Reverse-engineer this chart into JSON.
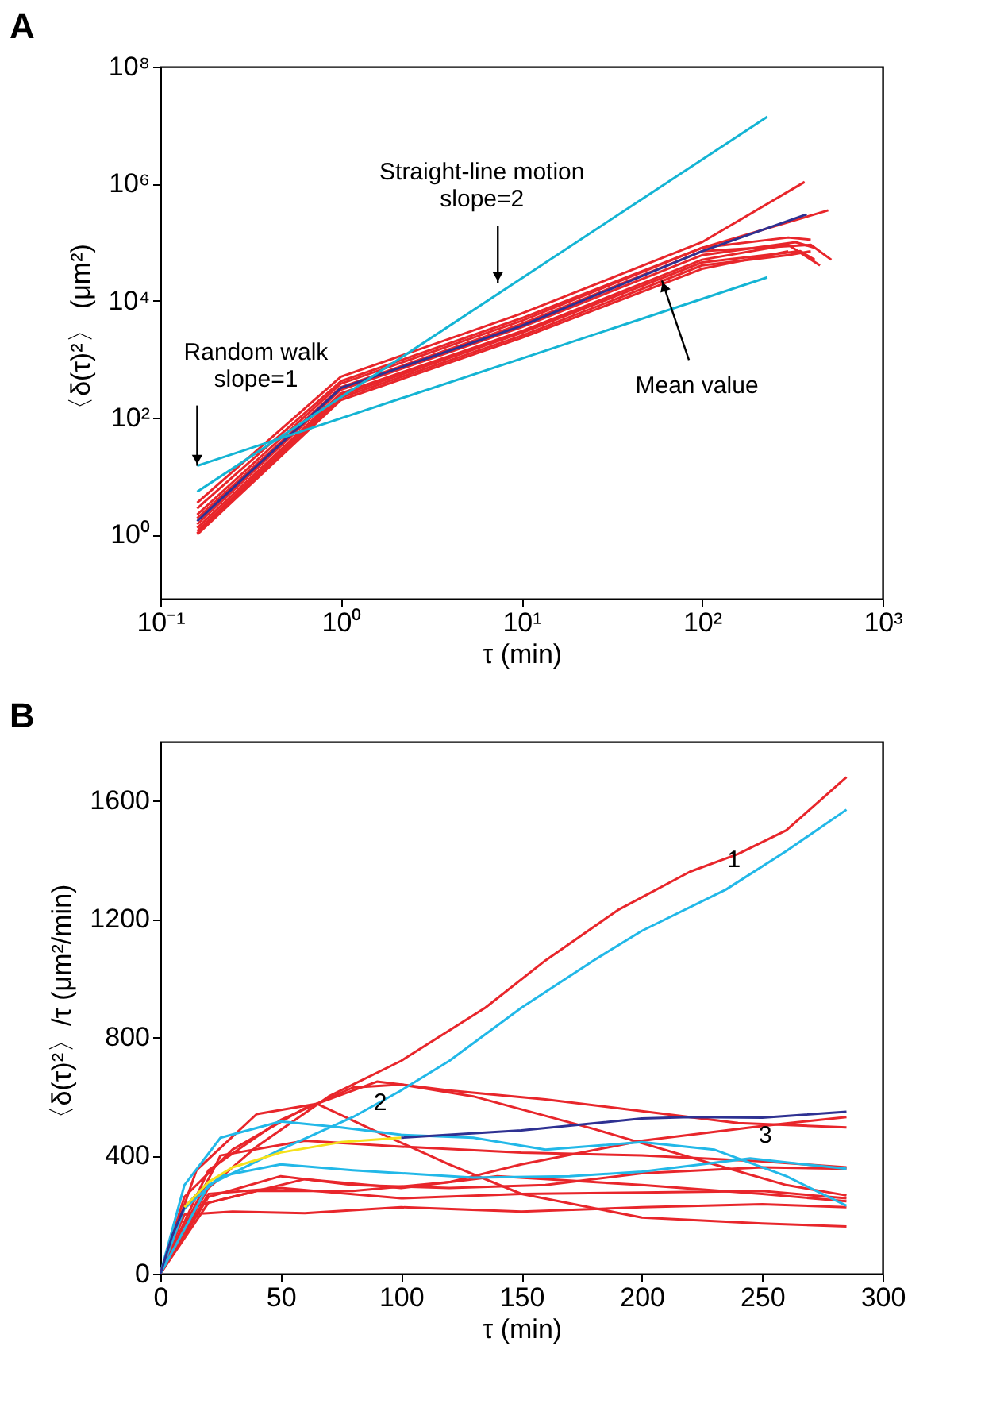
{
  "chart_data": [
    {
      "type": "line",
      "title": "A",
      "xlabel": "τ (min)",
      "ylabel": "〈δ(τ)²〉 (μm²)",
      "log": "xy",
      "grid": false,
      "legend": false,
      "xlim": [
        0.1,
        1000
      ],
      "xticks": [
        {
          "value": 0.1,
          "label": "10⁻¹"
        },
        {
          "value": 1,
          "label": "10⁰"
        },
        {
          "value": 10,
          "label": "10¹"
        },
        {
          "value": 100,
          "label": "10²"
        },
        {
          "value": 1000,
          "label": "10³"
        }
      ],
      "ylim": [
        0.08,
        100000000
      ],
      "yticks": [
        {
          "value": 1,
          "label": "10⁰"
        },
        {
          "value": 100,
          "label": "10²"
        },
        {
          "value": 10000,
          "label": "10⁴"
        },
        {
          "value": 1000000,
          "label": "10⁶"
        },
        {
          "value": 100000000,
          "label": "10⁸"
        }
      ],
      "series": [
        {
          "color": "#e8262b",
          "x": [
            0.16,
            1,
            10,
            100,
            370
          ],
          "values": [
            3.5,
            500,
            6000,
            100000,
            1070000
          ]
        },
        {
          "color": "#e8262b",
          "x": [
            0.16,
            1,
            10,
            100,
            500
          ],
          "values": [
            2.8,
            420,
            5000,
            80000,
            350000
          ]
        },
        {
          "color": "#e8262b",
          "x": [
            0.16,
            1,
            10,
            100,
            300,
            400
          ],
          "values": [
            2.2,
            380,
            4500,
            80000,
            120000,
            110000
          ]
        },
        {
          "color": "#e8262b",
          "x": [
            0.16,
            1,
            10,
            100,
            400,
            520
          ],
          "values": [
            1.9,
            330,
            4000,
            70000,
            90000,
            50000
          ]
        },
        {
          "color": "#e8262b",
          "x": [
            0.16,
            1,
            10,
            100,
            330,
            420
          ],
          "values": [
            1.5,
            300,
            3500,
            60000,
            100000,
            80000
          ]
        },
        {
          "color": "#e8262b",
          "x": [
            0.16,
            1,
            10,
            100,
            300,
            450
          ],
          "values": [
            1.3,
            260,
            3000,
            50000,
            90000,
            40000
          ]
        },
        {
          "color": "#e8262b",
          "x": [
            0.16,
            1,
            10,
            100,
            350,
            420
          ],
          "values": [
            1.15,
            240,
            2800,
            45000,
            70000,
            50000
          ]
        },
        {
          "color": "#e8262b",
          "x": [
            0.16,
            1,
            10,
            100,
            300,
            400
          ],
          "values": [
            1.05,
            220,
            2500,
            40000,
            60000,
            70000
          ]
        },
        {
          "color": "#e8262b",
          "x": [
            0.16,
            1,
            10,
            100,
            300
          ],
          "values": [
            1.0,
            200,
            2300,
            35000,
            70000
          ]
        },
        {
          "color": "#2e3192",
          "x": [
            0.16,
            1,
            10,
            100,
            380
          ],
          "values": [
            1.7,
            320,
            3700,
            70000,
            300000
          ]
        },
        {
          "color": "#14b4d4",
          "x": [
            0.16,
            230
          ],
          "values": [
            15,
            25000
          ]
        },
        {
          "color": "#14b4d4",
          "x": [
            0.16,
            230
          ],
          "values": [
            5.4,
            14000000
          ]
        }
      ],
      "annotations": [
        {
          "text": "Straight-line motion\nslope=2",
          "x": 7.4,
          "y": 20000
        },
        {
          "text": "Random walk\nslope=1",
          "x": 0.16,
          "y": 15
        },
        {
          "text": "Mean value",
          "x": 60,
          "y": 22000
        }
      ]
    },
    {
      "type": "line",
      "title": "B",
      "xlabel": "τ (min)",
      "ylabel": "〈δ(τ)²〉/τ (μm²/min)",
      "grid": false,
      "legend": false,
      "xlim": [
        0,
        300
      ],
      "xticks": [
        0,
        50,
        100,
        150,
        200,
        250,
        300
      ],
      "ylim": [
        0,
        1800
      ],
      "yticks": [
        0,
        400,
        800,
        1200,
        1600
      ],
      "series": [
        {
          "color": "#e8262b",
          "x": [
            0,
            20,
            40,
            70,
            100,
            135,
            160,
            190,
            220,
            240,
            260,
            285
          ],
          "values": [
            0,
            290,
            430,
            600,
            720,
            900,
            1060,
            1230,
            1360,
            1420,
            1500,
            1680
          ]
        },
        {
          "color": "#e8262b",
          "x": [
            0,
            10,
            30,
            60,
            90,
            120,
            160,
            200,
            240,
            285
          ],
          "values": [
            0,
            260,
            420,
            560,
            650,
            620,
            590,
            550,
            510,
            495
          ]
        },
        {
          "color": "#e8262b",
          "x": [
            0,
            15,
            40,
            65,
            90,
            120,
            150,
            200,
            250,
            285
          ],
          "values": [
            0,
            350,
            540,
            575,
            480,
            370,
            270,
            190,
            170,
            160
          ]
        },
        {
          "color": "#e8262b",
          "x": [
            0,
            20,
            50,
            80,
            100,
            130,
            180,
            230,
            260,
            285
          ],
          "values": [
            0,
            350,
            520,
            630,
            640,
            600,
            490,
            370,
            300,
            265
          ]
        },
        {
          "color": "#e8262b",
          "x": [
            0,
            20,
            50,
            80,
            120,
            160,
            200,
            250,
            285
          ],
          "values": [
            0,
            260,
            330,
            300,
            290,
            300,
            340,
            360,
            355
          ]
        },
        {
          "color": "#e8262b",
          "x": [
            0,
            15,
            40,
            80,
            120,
            150,
            200,
            250,
            285
          ],
          "values": [
            0,
            230,
            280,
            280,
            310,
            370,
            450,
            500,
            530
          ]
        },
        {
          "color": "#e8262b",
          "x": [
            0,
            10,
            30,
            60,
            100,
            150,
            200,
            250,
            285
          ],
          "values": [
            0,
            200,
            210,
            205,
            225,
            210,
            225,
            235,
            225
          ]
        },
        {
          "color": "#e8262b",
          "x": [
            0,
            20,
            50,
            100,
            150,
            200,
            250,
            285
          ],
          "values": [
            0,
            270,
            290,
            255,
            270,
            275,
            280,
            255
          ]
        },
        {
          "color": "#e8262b",
          "x": [
            0,
            20,
            60,
            100,
            140,
            200,
            250,
            285
          ],
          "values": [
            0,
            240,
            320,
            290,
            330,
            300,
            270,
            245
          ]
        },
        {
          "color": "#e8262b",
          "x": [
            0,
            25,
            60,
            100,
            150,
            200,
            250,
            285
          ],
          "values": [
            0,
            400,
            450,
            430,
            410,
            400,
            380,
            360
          ]
        },
        {
          "color": "#22b8e8",
          "x": [
            0,
            20,
            50,
            80,
            100,
            120,
            150,
            180,
            200,
            235,
            260,
            285
          ],
          "values": [
            0,
            300,
            420,
            530,
            620,
            720,
            900,
            1060,
            1160,
            1300,
            1430,
            1570
          ]
        },
        {
          "color": "#22b8e8",
          "x": [
            0,
            10,
            25,
            50,
            75,
            100,
            130,
            160,
            200,
            230,
            260,
            285
          ],
          "values": [
            0,
            300,
            460,
            515,
            495,
            470,
            460,
            420,
            445,
            420,
            330,
            230
          ]
        },
        {
          "color": "#22b8e8",
          "x": [
            0,
            10,
            25,
            50,
            80,
            130,
            170,
            200,
            245,
            285
          ],
          "values": [
            0,
            220,
            330,
            370,
            350,
            325,
            330,
            345,
            390,
            355
          ]
        },
        {
          "color": "#2e3192",
          "x": [
            0,
            5,
            10,
            20,
            30,
            50,
            75,
            100,
            150,
            200,
            220,
            250,
            285
          ],
          "values": [
            0,
            130,
            225,
            310,
            null,
            null,
            null,
            460,
            485,
            525,
            530,
            528,
            548
          ]
        },
        {
          "color": "#f5e11a",
          "x": [
            10,
            20,
            30,
            50,
            75,
            100
          ],
          "values": [
            225,
            310,
            360,
            410,
            445,
            460
          ]
        }
      ],
      "annotations": [
        {
          "text": "1",
          "x": 237,
          "y": 1310
        },
        {
          "text": "2",
          "x": 90,
          "y": 490
        },
        {
          "text": "3",
          "x": 250,
          "y": 380
        }
      ]
    }
  ]
}
